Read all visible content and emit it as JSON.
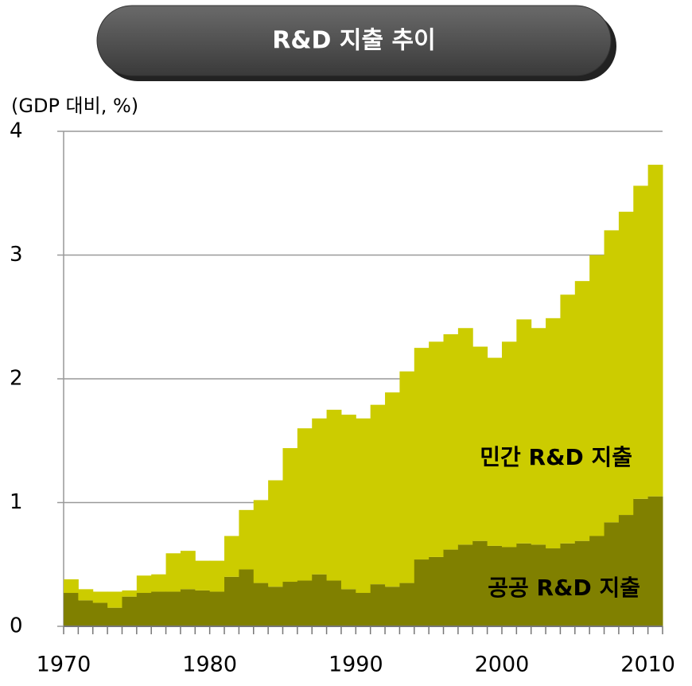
{
  "chart_data": {
    "type": "stacked_bar",
    "title": "R&D 지출 추이",
    "y_label": "(GDP 대비, %)",
    "categories": [
      1970,
      null,
      null,
      null,
      null,
      null,
      null,
      null,
      null,
      null,
      1980,
      null,
      null,
      null,
      null,
      null,
      null,
      null,
      null,
      null,
      1990,
      null,
      null,
      null,
      null,
      null,
      null,
      null,
      null,
      null,
      2000,
      null,
      null,
      null,
      null,
      null,
      null,
      null,
      null,
      null,
      2010
    ],
    "series": [
      {
        "name": "공공 R&D 지출",
        "color": "#808000",
        "values": [
          0.27,
          0.21,
          0.19,
          0.15,
          0.24,
          0.27,
          0.28,
          0.28,
          0.3,
          0.29,
          0.28,
          0.4,
          0.46,
          0.35,
          0.32,
          0.36,
          0.37,
          0.42,
          0.37,
          0.3,
          0.27,
          0.34,
          0.32,
          0.35,
          0.54,
          0.56,
          0.62,
          0.66,
          0.69,
          0.65,
          0.64,
          0.67,
          0.66,
          0.63,
          0.67,
          0.69,
          0.73,
          0.84,
          0.9,
          1.03,
          1.05
        ]
      },
      {
        "name": "민간 R&D 지출",
        "color": "#cccc00",
        "values": [
          0.11,
          0.09,
          0.09,
          0.13,
          0.05,
          0.14,
          0.14,
          0.31,
          0.31,
          0.24,
          0.25,
          0.33,
          0.48,
          0.67,
          0.86,
          1.08,
          1.23,
          1.26,
          1.38,
          1.41,
          1.41,
          1.45,
          1.57,
          1.71,
          1.71,
          1.74,
          1.74,
          1.75,
          1.57,
          1.52,
          1.66,
          1.81,
          1.75,
          1.86,
          2.01,
          2.1,
          2.27,
          2.36,
          2.45,
          2.53,
          2.68
        ]
      }
    ],
    "ylim": [
      0,
      4
    ],
    "yticks": [
      0,
      1,
      2,
      3,
      4
    ],
    "grid": true
  }
}
